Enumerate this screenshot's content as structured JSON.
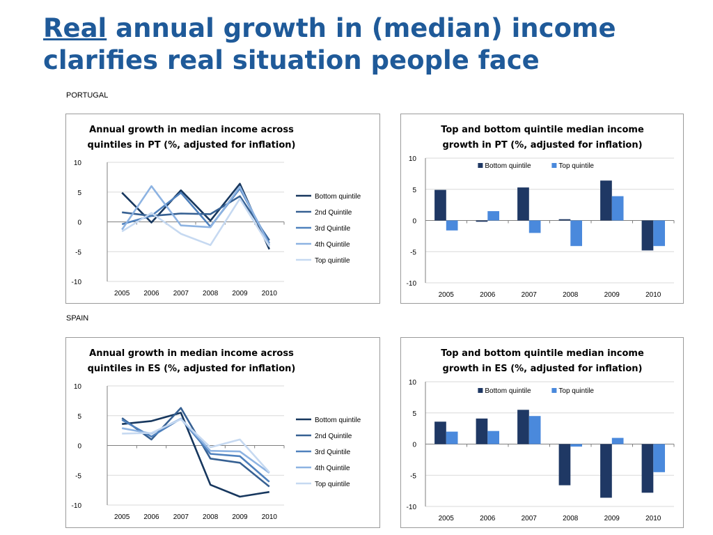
{
  "slide": {
    "title_emphasis": "Real",
    "title_rest": " annual growth in (median) income clarifies real situation people face",
    "sections": [
      "PORTUGAL",
      "SPAIN"
    ]
  },
  "chart_data": [
    {
      "id": "pt-line",
      "type": "line",
      "title": "Annual growth in median income across quintiles in PT (%, adjusted for inflation)",
      "title_lines": [
        "Annual growth in median income across",
        "quintiles in PT (%, adjusted for inflation)"
      ],
      "x": [
        "2005",
        "2006",
        "2007",
        "2008",
        "2009",
        "2010"
      ],
      "ylim": [
        -10,
        10
      ],
      "yticks": [
        10,
        5,
        0,
        -5,
        -10
      ],
      "grid": true,
      "legend": "right",
      "series": [
        {
          "name": "Bottom quintile",
          "color": "#17375e",
          "values": [
            4.9,
            -0.1,
            5.3,
            0.2,
            6.4,
            -4.6
          ]
        },
        {
          "name": "2nd Quintile",
          "color": "#366092",
          "values": [
            1.6,
            1.0,
            1.4,
            1.3,
            4.3,
            -3.1
          ]
        },
        {
          "name": "3rd Quintile",
          "color": "#4f81bd",
          "values": [
            -0.4,
            1.0,
            4.9,
            -0.8,
            5.6,
            -3.6
          ]
        },
        {
          "name": "4th Quintile",
          "color": "#8db3e2",
          "values": [
            -1.3,
            6.0,
            -0.6,
            -0.9,
            5.9,
            -3.9
          ]
        },
        {
          "name": "Top quintile",
          "color": "#c6d9f1",
          "values": [
            -1.6,
            1.5,
            -2.0,
            -3.9,
            3.9,
            -4.1
          ]
        }
      ]
    },
    {
      "id": "pt-bar",
      "type": "bar",
      "title": "Top and bottom quintile median income growth in PT (%, adjusted for inflation)",
      "title_lines": [
        "Top and bottom quintile median income",
        "growth in PT (%, adjusted for inflation)"
      ],
      "categories": [
        "2005",
        "2006",
        "2007",
        "2008",
        "2009",
        "2010"
      ],
      "ylim": [
        -10,
        10
      ],
      "yticks": [
        10,
        5,
        0,
        -5,
        -10
      ],
      "grid": true,
      "legend": "top",
      "series": [
        {
          "name": "Bottom quintile",
          "color": "#1f3864",
          "values": [
            4.9,
            -0.2,
            5.3,
            0.2,
            6.4,
            -4.8
          ]
        },
        {
          "name": "Top quintile",
          "color": "#4a89dc",
          "values": [
            -1.6,
            1.5,
            -2.0,
            -4.1,
            3.9,
            -4.1
          ]
        }
      ]
    },
    {
      "id": "es-line",
      "type": "line",
      "title": "Annual growth in median income across quintiles in ES (%, adjusted for inflation)",
      "title_lines": [
        "Annual growth in median income across",
        "quintiles in ES (%, adjusted for inflation)"
      ],
      "x": [
        "2005",
        "2006",
        "2007",
        "2008",
        "2009",
        "2010"
      ],
      "ylim": [
        -10,
        10
      ],
      "yticks": [
        10,
        5,
        0,
        -5,
        -10
      ],
      "grid": true,
      "legend": "right",
      "series": [
        {
          "name": "Bottom quintile",
          "color": "#17375e",
          "values": [
            3.6,
            4.1,
            5.5,
            -6.6,
            -8.6,
            -7.8
          ]
        },
        {
          "name": "2nd Quintile",
          "color": "#366092",
          "values": [
            4.6,
            1.0,
            6.3,
            -2.2,
            -2.9,
            -6.9
          ]
        },
        {
          "name": "3rd Quintile",
          "color": "#4f81bd",
          "values": [
            4.3,
            1.5,
            4.5,
            -1.4,
            -1.8,
            -6.1
          ]
        },
        {
          "name": "4th Quintile",
          "color": "#8db3e2",
          "values": [
            2.9,
            2.0,
            4.5,
            -0.9,
            -1.0,
            -4.6
          ]
        },
        {
          "name": "Top quintile",
          "color": "#c6d9f1",
          "values": [
            2.0,
            2.1,
            4.4,
            -0.3,
            1.0,
            -4.5
          ]
        }
      ]
    },
    {
      "id": "es-bar",
      "type": "bar",
      "title": "Top and bottom quintile median income growth in ES (%, adjusted for inflation)",
      "title_lines": [
        "Top and bottom quintile median income",
        "growth in ES (%, adjusted for inflation)"
      ],
      "categories": [
        "2005",
        "2006",
        "2007",
        "2008",
        "2009",
        "2010"
      ],
      "ylim": [
        -10,
        10
      ],
      "yticks": [
        10,
        5,
        0,
        -5,
        -10
      ],
      "grid": true,
      "legend": "top",
      "series": [
        {
          "name": "Bottom quintile",
          "color": "#1f3864",
          "values": [
            3.6,
            4.1,
            5.5,
            -6.6,
            -8.6,
            -7.8
          ]
        },
        {
          "name": "Top quintile",
          "color": "#4a89dc",
          "values": [
            2.0,
            2.1,
            4.5,
            -0.4,
            1.0,
            -4.5
          ]
        }
      ]
    }
  ]
}
